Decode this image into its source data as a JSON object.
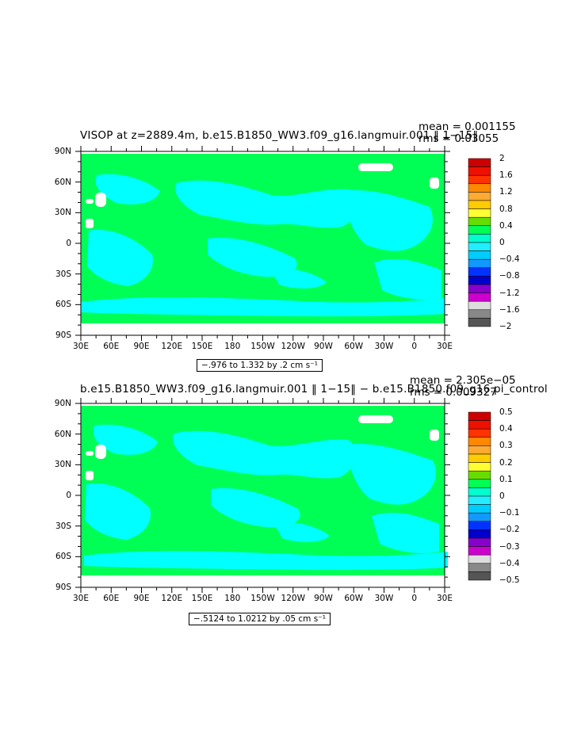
{
  "panels": [
    {
      "title": "VISOP at z=2889.4m, b.e15.B1850_WW3.f09_g16.langmuir.001 ‖ 1−15‖",
      "mean": "mean = 0.001155",
      "rms": "rms = 0.03055",
      "range_label": "−.976 to 1.332 by .2 cm s⁻¹",
      "colorbar_labels": [
        "2",
        "1.6",
        "1.2",
        "0.8",
        "0.4",
        "0",
        "−0.4",
        "−0.8",
        "−1.2",
        "−1.6",
        "−2"
      ]
    },
    {
      "title": "b.e15.B1850_WW3.f09_g16.langmuir.001 ‖ 1−15‖ − b.e15.B1850.f09_g16.pi_control",
      "mean": "mean = 2.305e−05",
      "rms": "rms = 0.009327",
      "range_label": "−.5124 to 1.0212 by .05 cm s⁻¹",
      "colorbar_labels": [
        "0.5",
        "0.4",
        "0.3",
        "0.2",
        "0.1",
        "0",
        "−0.1",
        "−0.2",
        "−0.3",
        "−0.4",
        "−0.5"
      ]
    }
  ],
  "axes": {
    "lat_labels": [
      "90N",
      "60N",
      "30N",
      "0",
      "30S",
      "60S",
      "90S"
    ],
    "lon_labels": [
      "30E",
      "60E",
      "90E",
      "120E",
      "150E",
      "180",
      "150W",
      "120W",
      "90W",
      "60W",
      "30W",
      "0",
      "30E"
    ]
  },
  "colors": {
    "land_background": "#ffffff",
    "ocean_zero": "#00ff55",
    "ocean_negative_small": "#00ffff",
    "colorbar": [
      "#cc0000",
      "#ee1100",
      "#ff3300",
      "#ff8800",
      "#ffaa33",
      "#ffcc00",
      "#ffff33",
      "#66dd00",
      "#00ff55",
      "#00ffcc",
      "#22eeff",
      "#00ccff",
      "#1199ff",
      "#0033ff",
      "#0000cc",
      "#8800cc",
      "#cc00cc",
      "#dddddd",
      "#888888",
      "#555555"
    ]
  }
}
